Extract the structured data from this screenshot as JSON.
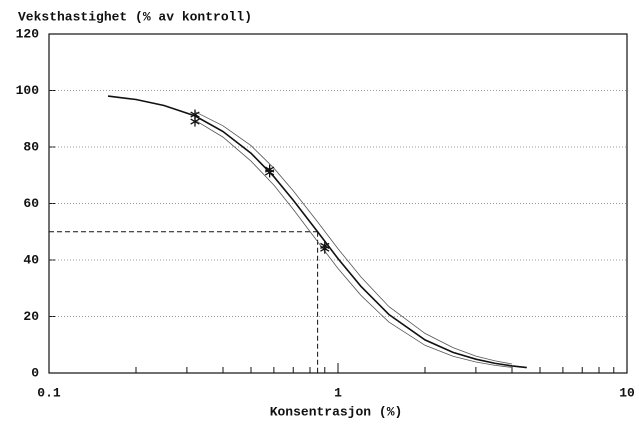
{
  "chart_data": {
    "type": "line",
    "title": "Veksthastighet (% av kontroll)",
    "x_label": "Konsentrasjon (%)",
    "xscale": "log",
    "xlim": [
      0.1,
      10
    ],
    "ylim": [
      0,
      120
    ],
    "xticks": [
      0.1,
      1,
      10
    ],
    "xminor": [
      0.2,
      0.3,
      0.4,
      0.5,
      0.6,
      0.7,
      0.8,
      0.9,
      2,
      3,
      4,
      5,
      6,
      7,
      8,
      9
    ],
    "yticks": [
      0,
      20,
      40,
      60,
      80,
      100,
      120
    ],
    "grid": true,
    "color": "#111111",
    "series": [
      {
        "style": "solid",
        "x": [
          0.16,
          0.2,
          0.25,
          0.32,
          0.4,
          0.5,
          0.6,
          0.7,
          0.85,
          1.0,
          1.2,
          1.5,
          2.0,
          2.5,
          3.0,
          3.5,
          4.0,
          4.5
        ],
        "values": [
          98,
          96.8,
          94.7,
          91,
          85.5,
          77.8,
          69.5,
          61.2,
          50,
          40.5,
          30.7,
          20.7,
          11.7,
          7.3,
          4.9,
          3.4,
          2.5,
          1.9
        ]
      },
      {
        "style": "thin",
        "x": [
          0.32,
          0.4,
          0.5,
          0.6,
          0.7,
          0.85,
          1.0,
          1.2,
          1.5,
          2.0,
          2.5,
          3.0,
          3.5,
          4.0
        ],
        "values": [
          92.5,
          87.5,
          80.5,
          72.5,
          64.5,
          53.5,
          44,
          34,
          23.5,
          14,
          9,
          6,
          4.3,
          3.2
        ]
      },
      {
        "style": "thin",
        "x": [
          0.32,
          0.4,
          0.5,
          0.6,
          0.7,
          0.85,
          1.0,
          1.2,
          1.5,
          2.0,
          2.5,
          3.0,
          3.5,
          4.0
        ],
        "values": [
          89.5,
          83.5,
          75,
          66.5,
          58,
          46.5,
          37,
          27.5,
          18,
          9.8,
          5.9,
          3.9,
          2.7,
          2.0
        ]
      }
    ],
    "points": {
      "x": [
        0.32,
        0.32,
        0.58,
        0.58,
        0.9,
        0.9
      ],
      "values": [
        91.5,
        89,
        71,
        72,
        45,
        44
      ]
    },
    "reference": {
      "x": 0.85,
      "y": 50
    }
  }
}
